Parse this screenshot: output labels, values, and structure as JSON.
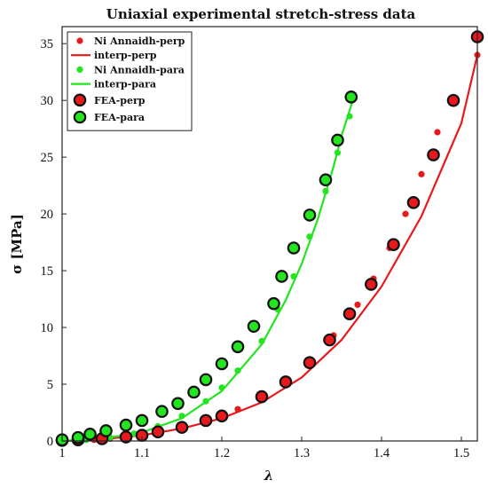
{
  "chart_data": {
    "type": "scatter",
    "title": "Uniaxial experimental stretch-stress data",
    "xlabel": "λ",
    "ylabel": "σ [MPa]",
    "xlim": [
      1.0,
      1.52
    ],
    "ylim": [
      0,
      36.5
    ],
    "x_ticks": [
      {
        "value": 1.0,
        "label": "1"
      },
      {
        "value": 1.1,
        "label": "1.1"
      },
      {
        "value": 1.2,
        "label": "1.2"
      },
      {
        "value": 1.3,
        "label": "1.3"
      },
      {
        "value": 1.4,
        "label": "1.4"
      },
      {
        "value": 1.5,
        "label": "1.5"
      }
    ],
    "y_ticks": [
      {
        "value": 0,
        "label": "0"
      },
      {
        "value": 5,
        "label": "5"
      },
      {
        "value": 10,
        "label": "10"
      },
      {
        "value": 15,
        "label": "15"
      },
      {
        "value": 20,
        "label": "20"
      },
      {
        "value": 25,
        "label": "25"
      },
      {
        "value": 30,
        "label": "30"
      },
      {
        "value": 35,
        "label": "35"
      }
    ],
    "grid": false,
    "legend_position": "top-left",
    "colors": {
      "perp": "#e8191c",
      "para": "#22e51f",
      "edge": "#111111"
    },
    "series": [
      {
        "name": "Ni Annaidh-perp",
        "kind": "dots",
        "color": "#e8191c",
        "x": [
          1.0,
          1.02,
          1.04,
          1.06,
          1.08,
          1.1,
          1.12,
          1.15,
          1.18,
          1.2,
          1.22,
          1.25,
          1.28,
          1.31,
          1.34,
          1.37,
          1.39,
          1.41,
          1.43,
          1.45,
          1.47,
          1.49,
          1.52
        ],
        "y": [
          0.0,
          0.05,
          0.1,
          0.2,
          0.35,
          0.55,
          0.8,
          1.2,
          1.7,
          2.2,
          2.8,
          3.7,
          5.2,
          6.8,
          9.3,
          12.0,
          14.3,
          17.0,
          20.0,
          23.5,
          27.2,
          30.0,
          34.0
        ]
      },
      {
        "name": "interp-perp",
        "kind": "line",
        "color": "#e8191c",
        "x": [
          1.0,
          1.05,
          1.1,
          1.15,
          1.2,
          1.25,
          1.3,
          1.35,
          1.4,
          1.45,
          1.5,
          1.52
        ],
        "y": [
          0.0,
          0.15,
          0.5,
          1.1,
          2.0,
          3.4,
          5.6,
          8.9,
          13.6,
          19.8,
          28.0,
          34.0
        ]
      },
      {
        "name": "Ni Annaidh-para",
        "kind": "dots",
        "color": "#22e51f",
        "x": [
          1.0,
          1.03,
          1.06,
          1.09,
          1.12,
          1.15,
          1.18,
          1.2,
          1.22,
          1.25,
          1.27,
          1.29,
          1.31,
          1.33,
          1.345,
          1.36
        ],
        "y": [
          0.0,
          0.1,
          0.3,
          0.65,
          1.3,
          2.2,
          3.5,
          4.7,
          6.2,
          8.8,
          11.6,
          14.5,
          18.0,
          22.0,
          25.4,
          28.6
        ]
      },
      {
        "name": "interp-para",
        "kind": "line",
        "color": "#22e51f",
        "x": [
          1.0,
          1.05,
          1.1,
          1.15,
          1.2,
          1.25,
          1.28,
          1.3,
          1.32,
          1.34,
          1.35,
          1.365
        ],
        "y": [
          0.0,
          0.2,
          0.75,
          2.0,
          4.4,
          8.5,
          12.4,
          15.6,
          19.5,
          24.2,
          26.9,
          30.2
        ]
      },
      {
        "name": "FEA-perp",
        "kind": "circles",
        "color": "#e8191c",
        "x": [
          1.0,
          1.02,
          1.05,
          1.08,
          1.1,
          1.12,
          1.15,
          1.18,
          1.2,
          1.25,
          1.28,
          1.31,
          1.335,
          1.36,
          1.387,
          1.415,
          1.44,
          1.465,
          1.49,
          1.52
        ],
        "y": [
          0.05,
          0.1,
          0.2,
          0.35,
          0.5,
          0.8,
          1.2,
          1.8,
          2.2,
          3.9,
          5.2,
          6.9,
          8.9,
          11.2,
          13.8,
          17.3,
          21.0,
          25.2,
          30.0,
          35.6
        ]
      },
      {
        "name": "FEA-para",
        "kind": "circles",
        "color": "#22e51f",
        "x": [
          1.0,
          1.02,
          1.035,
          1.055,
          1.08,
          1.1,
          1.125,
          1.145,
          1.165,
          1.18,
          1.2,
          1.22,
          1.24,
          1.265,
          1.275,
          1.29,
          1.31,
          1.33,
          1.345,
          1.362
        ],
        "y": [
          0.1,
          0.3,
          0.6,
          0.9,
          1.4,
          1.8,
          2.6,
          3.3,
          4.3,
          5.4,
          6.8,
          8.3,
          10.1,
          12.1,
          14.5,
          17.0,
          19.9,
          23.0,
          26.5,
          30.3
        ]
      }
    ]
  }
}
